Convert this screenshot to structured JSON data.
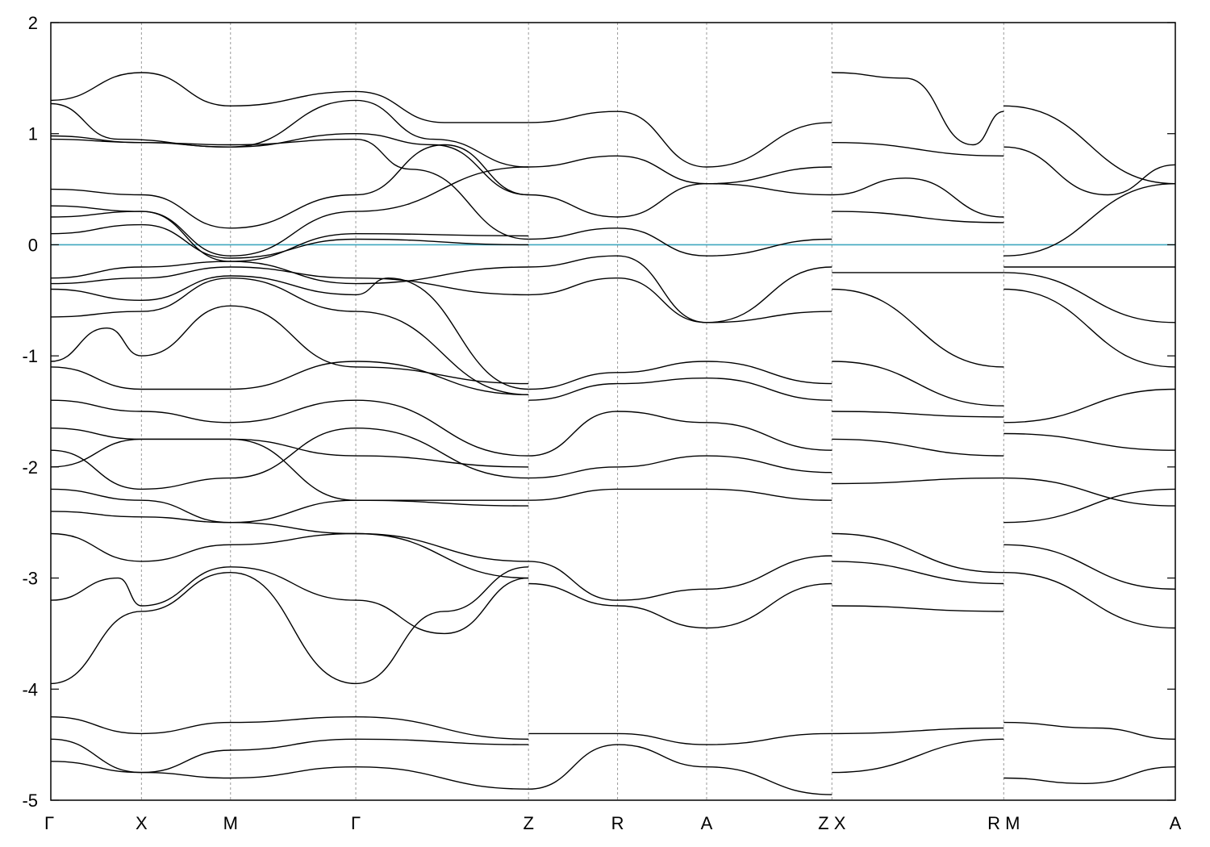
{
  "chart_data": {
    "type": "line",
    "title": "",
    "xlabel": "",
    "ylabel": "",
    "ylim": [
      -5,
      2
    ],
    "yticks": [
      2,
      1,
      0,
      -1,
      -2,
      -3,
      -4,
      -5
    ],
    "xlim": [
      0,
      1
    ],
    "kpoints": [
      {
        "label": "Γ",
        "x": 0.0
      },
      {
        "label": "X",
        "x": 0.0806
      },
      {
        "label": "M",
        "x": 0.1598
      },
      {
        "label": "Γ",
        "x": 0.2712
      },
      {
        "label": "Z",
        "x": 0.4248
      },
      {
        "label": "R",
        "x": 0.504
      },
      {
        "label": "A",
        "x": 0.5832
      },
      {
        "label": "Z X",
        "x": 0.6946
      },
      {
        "label": "R M",
        "x": 0.8474
      },
      {
        "label": "A",
        "x": 1.0
      }
    ],
    "fermi_level": 0,
    "colors": {
      "bands": "#000000",
      "fermi": "#3fa7bf",
      "grid": "#9a9a9a"
    },
    "series": [
      {
        "x": [
          0,
          0.0806,
          0.1598,
          0.2712,
          0.35,
          0.4248
        ],
        "values": [
          1.3,
          1.55,
          1.25,
          1.38,
          1.1,
          1.1
        ]
      },
      {
        "x": [
          0,
          0.06,
          0.1598,
          0.2712,
          0.34,
          0.4248
        ],
        "values": [
          1.27,
          0.95,
          0.88,
          1.3,
          0.95,
          0.7
        ]
      },
      {
        "x": [
          0,
          0.0806,
          0.1598,
          0.2712,
          0.34,
          0.4248
        ],
        "values": [
          0.98,
          0.92,
          0.88,
          1.0,
          0.9,
          0.45
        ]
      },
      {
        "x": [
          0,
          0.0806,
          0.1598,
          0.2712,
          0.32,
          0.4248
        ],
        "values": [
          0.95,
          0.92,
          0.9,
          0.95,
          0.68,
          0.05
        ]
      },
      {
        "x": [
          0,
          0.0806,
          0.1598,
          0.2712,
          0.35,
          0.4248
        ],
        "values": [
          0.5,
          0.45,
          0.15,
          0.45,
          0.9,
          0.45
        ]
      },
      {
        "x": [
          0,
          0.0806,
          0.1598,
          0.2712,
          0.4248
        ],
        "values": [
          0.35,
          0.3,
          -0.1,
          0.3,
          0.7
        ]
      },
      {
        "x": [
          0,
          0.0806,
          0.1598,
          0.2712,
          0.4248
        ],
        "values": [
          0.25,
          0.3,
          -0.15,
          0.1,
          0.08
        ]
      },
      {
        "x": [
          0,
          0.0806,
          0.1598,
          0.2712,
          0.4248
        ],
        "values": [
          0.1,
          0.18,
          -0.12,
          0.05,
          0.0
        ]
      },
      {
        "x": [
          0,
          0.0806,
          0.1598,
          0.2712,
          0.4248
        ],
        "values": [
          -0.3,
          -0.2,
          -0.15,
          -0.35,
          -0.2
        ]
      },
      {
        "x": [
          0,
          0.0806,
          0.1598,
          0.2712,
          0.4248
        ],
        "values": [
          -0.35,
          -0.3,
          -0.2,
          -0.3,
          -0.45
        ]
      },
      {
        "x": [
          0,
          0.0806,
          0.1598,
          0.2712,
          0.3,
          0.4248
        ],
        "values": [
          -0.4,
          -0.5,
          -0.28,
          -0.45,
          -0.3,
          -1.3
        ]
      },
      {
        "x": [
          0,
          0.0806,
          0.1598,
          0.2712,
          0.4248
        ],
        "values": [
          -0.65,
          -0.6,
          -0.3,
          -0.6,
          -1.35
        ]
      },
      {
        "x": [
          0,
          0.05,
          0.0806,
          0.1598,
          0.2712,
          0.4248
        ],
        "values": [
          -1.05,
          -0.75,
          -1.0,
          -0.55,
          -1.1,
          -1.25
        ]
      },
      {
        "x": [
          0,
          0.0806,
          0.1598,
          0.2712,
          0.4248
        ],
        "values": [
          -1.1,
          -1.3,
          -1.3,
          -1.05,
          -1.35
        ]
      },
      {
        "x": [
          0,
          0.0806,
          0.1598,
          0.2712,
          0.4248
        ],
        "values": [
          -1.4,
          -1.5,
          -1.6,
          -1.4,
          -1.9
        ]
      },
      {
        "x": [
          0,
          0.0806,
          0.1598,
          0.2712,
          0.4248
        ],
        "values": [
          -1.65,
          -1.75,
          -1.75,
          -1.9,
          -2.0
        ]
      },
      {
        "x": [
          0,
          0.0806,
          0.1598,
          0.2712,
          0.4248
        ],
        "values": [
          -1.85,
          -2.2,
          -2.1,
          -1.65,
          -2.1
        ]
      },
      {
        "x": [
          0,
          0.0806,
          0.1598,
          0.2712,
          0.4248
        ],
        "values": [
          -2.0,
          -1.75,
          -1.75,
          -2.3,
          -2.3
        ]
      },
      {
        "x": [
          0,
          0.0806,
          0.1598,
          0.2712,
          0.4248
        ],
        "values": [
          -2.2,
          -2.3,
          -2.5,
          -2.3,
          -2.35
        ]
      },
      {
        "x": [
          0,
          0.0806,
          0.1598,
          0.2712,
          0.4248
        ],
        "values": [
          -2.4,
          -2.45,
          -2.5,
          -2.6,
          -2.85
        ]
      },
      {
        "x": [
          0,
          0.0806,
          0.1598,
          0.2712,
          0.4248
        ],
        "values": [
          -2.6,
          -2.85,
          -2.7,
          -2.6,
          -3.0
        ]
      },
      {
        "x": [
          0,
          0.06,
          0.0806,
          0.1598,
          0.2712,
          0.35,
          0.4248
        ],
        "values": [
          -3.2,
          -3.0,
          -3.25,
          -2.9,
          -3.2,
          -3.5,
          -3.0
        ]
      },
      {
        "x": [
          0,
          0.0806,
          0.1598,
          0.2712,
          0.35,
          0.4248
        ],
        "values": [
          -3.95,
          -3.3,
          -2.95,
          -3.95,
          -3.3,
          -2.9
        ]
      },
      {
        "x": [
          0,
          0.0806,
          0.1598,
          0.2712,
          0.4248
        ],
        "values": [
          -4.25,
          -4.4,
          -4.3,
          -4.25,
          -4.45
        ]
      },
      {
        "x": [
          0,
          0.0806,
          0.1598,
          0.2712,
          0.4248
        ],
        "values": [
          -4.45,
          -4.75,
          -4.55,
          -4.45,
          -4.5
        ]
      },
      {
        "x": [
          0,
          0.0806,
          0.1598,
          0.2712,
          0.4248
        ],
        "values": [
          -4.65,
          -4.75,
          -4.8,
          -4.7,
          -4.9
        ]
      },
      {
        "x": [
          0.4248,
          0.504,
          0.5832,
          0.6946
        ],
        "values": [
          1.1,
          1.2,
          0.7,
          1.1
        ]
      },
      {
        "x": [
          0.4248,
          0.504,
          0.5832,
          0.6946
        ],
        "values": [
          0.7,
          0.8,
          0.55,
          0.7
        ]
      },
      {
        "x": [
          0.4248,
          0.504,
          0.5832,
          0.6946
        ],
        "values": [
          0.45,
          0.25,
          0.55,
          0.45
        ]
      },
      {
        "x": [
          0.4248,
          0.504,
          0.5832,
          0.6946
        ],
        "values": [
          0.05,
          0.15,
          -0.1,
          0.05
        ]
      },
      {
        "x": [
          0.4248,
          0.504,
          0.5832,
          0.6946
        ],
        "values": [
          -0.2,
          -0.1,
          -0.7,
          -0.2
        ]
      },
      {
        "x": [
          0.4248,
          0.504,
          0.5832,
          0.6946
        ],
        "values": [
          -0.45,
          -0.3,
          -0.7,
          -0.6
        ]
      },
      {
        "x": [
          0.4248,
          0.504,
          0.5832,
          0.6946
        ],
        "values": [
          -1.3,
          -1.15,
          -1.05,
          -1.25
        ]
      },
      {
        "x": [
          0.4248,
          0.504,
          0.5832,
          0.6946
        ],
        "values": [
          -1.4,
          -1.25,
          -1.2,
          -1.4
        ]
      },
      {
        "x": [
          0.4248,
          0.504,
          0.5832,
          0.6946
        ],
        "values": [
          -1.9,
          -1.5,
          -1.6,
          -1.85
        ]
      },
      {
        "x": [
          0.4248,
          0.504,
          0.5832,
          0.6946
        ],
        "values": [
          -2.1,
          -2.0,
          -1.9,
          -2.05
        ]
      },
      {
        "x": [
          0.4248,
          0.504,
          0.5832,
          0.6946
        ],
        "values": [
          -2.3,
          -2.2,
          -2.2,
          -2.3
        ]
      },
      {
        "x": [
          0.4248,
          0.504,
          0.5832,
          0.6946
        ],
        "values": [
          -2.85,
          -3.2,
          -3.1,
          -2.8
        ]
      },
      {
        "x": [
          0.4248,
          0.504,
          0.5832,
          0.6946
        ],
        "values": [
          -3.05,
          -3.25,
          -3.45,
          -3.05
        ]
      },
      {
        "x": [
          0.4248,
          0.504,
          0.5832,
          0.6946
        ],
        "values": [
          -4.4,
          -4.4,
          -4.5,
          -4.4
        ]
      },
      {
        "x": [
          0.4248,
          0.504,
          0.5832,
          0.6946
        ],
        "values": [
          -4.9,
          -4.5,
          -4.7,
          -4.95
        ]
      },
      {
        "x": [
          0.6946,
          0.76,
          0.82,
          0.8474
        ],
        "values": [
          1.55,
          1.5,
          0.9,
          1.2
        ]
      },
      {
        "x": [
          0.6946,
          0.8474
        ],
        "values": [
          0.92,
          0.8
        ]
      },
      {
        "x": [
          0.6946,
          0.76,
          0.8474
        ],
        "values": [
          0.45,
          0.6,
          0.25
        ]
      },
      {
        "x": [
          0.6946,
          0.8474
        ],
        "values": [
          0.3,
          0.2
        ]
      },
      {
        "x": [
          0.6946,
          0.8474
        ],
        "values": [
          -0.25,
          -0.25
        ]
      },
      {
        "x": [
          0.6946,
          0.8474
        ],
        "values": [
          -0.4,
          -1.1
        ]
      },
      {
        "x": [
          0.6946,
          0.8474
        ],
        "values": [
          -1.05,
          -1.45
        ]
      },
      {
        "x": [
          0.6946,
          0.8474
        ],
        "values": [
          -1.5,
          -1.55
        ]
      },
      {
        "x": [
          0.6946,
          0.8474
        ],
        "values": [
          -1.75,
          -1.9
        ]
      },
      {
        "x": [
          0.6946,
          0.8474
        ],
        "values": [
          -2.15,
          -2.1
        ]
      },
      {
        "x": [
          0.6946,
          0.8474
        ],
        "values": [
          -2.6,
          -2.95
        ]
      },
      {
        "x": [
          0.6946,
          0.8474
        ],
        "values": [
          -2.85,
          -3.05
        ]
      },
      {
        "x": [
          0.6946,
          0.8474
        ],
        "values": [
          -3.25,
          -3.3
        ]
      },
      {
        "x": [
          0.6946,
          0.8474
        ],
        "values": [
          -4.4,
          -4.35
        ]
      },
      {
        "x": [
          0.6946,
          0.8474
        ],
        "values": [
          -4.75,
          -4.45
        ]
      },
      {
        "x": [
          0.8474,
          1.0
        ],
        "values": [
          1.25,
          0.55
        ]
      },
      {
        "x": [
          0.8474,
          0.94,
          1.0
        ],
        "values": [
          0.88,
          0.45,
          0.72
        ]
      },
      {
        "x": [
          0.8474,
          1.0
        ],
        "values": [
          -0.1,
          0.55
        ]
      },
      {
        "x": [
          0.8474,
          1.0
        ],
        "values": [
          -0.2,
          -0.2
        ]
      },
      {
        "x": [
          0.8474,
          1.0
        ],
        "values": [
          -0.25,
          -0.7
        ]
      },
      {
        "x": [
          0.8474,
          1.0
        ],
        "values": [
          -0.4,
          -1.1
        ]
      },
      {
        "x": [
          0.8474,
          1.0
        ],
        "values": [
          -1.6,
          -1.3
        ]
      },
      {
        "x": [
          0.8474,
          1.0
        ],
        "values": [
          -1.7,
          -1.85
        ]
      },
      {
        "x": [
          0.8474,
          1.0
        ],
        "values": [
          -2.1,
          -2.35
        ]
      },
      {
        "x": [
          0.8474,
          1.0
        ],
        "values": [
          -2.5,
          -2.2
        ]
      },
      {
        "x": [
          0.8474,
          1.0
        ],
        "values": [
          -2.7,
          -3.1
        ]
      },
      {
        "x": [
          0.8474,
          1.0
        ],
        "values": [
          -2.95,
          -3.45
        ]
      },
      {
        "x": [
          0.8474,
          0.93,
          1.0
        ],
        "values": [
          -4.3,
          -4.35,
          -4.45
        ]
      },
      {
        "x": [
          0.8474,
          0.92,
          1.0
        ],
        "values": [
          -4.8,
          -4.85,
          -4.7
        ]
      }
    ]
  }
}
